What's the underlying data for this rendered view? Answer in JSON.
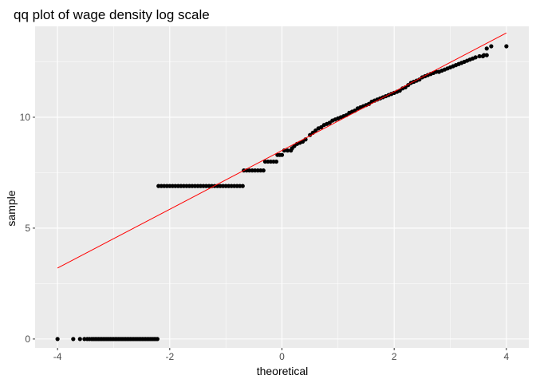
{
  "chart_data": {
    "type": "scatter",
    "title": "qq plot of wage density log scale",
    "xlabel": "theoretical",
    "ylabel": "sample",
    "xlim": [
      -4.4,
      4.4
    ],
    "ylim": [
      -0.4,
      14.1
    ],
    "x_ticks": [
      -4,
      -2,
      0,
      2,
      4
    ],
    "x_tick_labels": [
      "-4",
      "-2",
      "0",
      "2",
      "4"
    ],
    "y_ticks": [
      0,
      5,
      10
    ],
    "y_tick_labels": [
      "0",
      "5",
      "10"
    ],
    "grid": true,
    "background": "#ebebeb",
    "grid_color": "#ffffff",
    "point_color": "#000000",
    "line_color": "#ff0000",
    "reference_line": {
      "x": [
        -4,
        4
      ],
      "y": [
        3.2,
        13.8
      ]
    },
    "series": [
      {
        "points": [
          [
            -4.0,
            0
          ],
          [
            -3.72,
            0
          ],
          [
            -3.6,
            0
          ],
          [
            -3.52,
            0
          ],
          [
            -3.47,
            0
          ],
          [
            -3.43,
            0
          ],
          [
            -3.39,
            0
          ],
          [
            -3.36,
            0
          ],
          [
            -3.33,
            0
          ],
          [
            -3.3,
            0
          ],
          [
            -3.27,
            0
          ],
          [
            -3.24,
            0
          ],
          [
            -3.21,
            0
          ],
          [
            -3.18,
            0
          ],
          [
            -3.15,
            0
          ],
          [
            -3.12,
            0
          ],
          [
            -3.09,
            0
          ],
          [
            -3.06,
            0
          ],
          [
            -3.03,
            0
          ],
          [
            -3.0,
            0
          ],
          [
            -2.97,
            0
          ],
          [
            -2.94,
            0
          ],
          [
            -2.91,
            0
          ],
          [
            -2.88,
            0
          ],
          [
            -2.85,
            0
          ],
          [
            -2.82,
            0
          ],
          [
            -2.79,
            0
          ],
          [
            -2.76,
            0
          ],
          [
            -2.73,
            0
          ],
          [
            -2.7,
            0
          ],
          [
            -2.67,
            0
          ],
          [
            -2.64,
            0
          ],
          [
            -2.61,
            0
          ],
          [
            -2.58,
            0
          ],
          [
            -2.55,
            0
          ],
          [
            -2.52,
            0
          ],
          [
            -2.49,
            0
          ],
          [
            -2.46,
            0
          ],
          [
            -2.43,
            0
          ],
          [
            -2.4,
            0
          ],
          [
            -2.37,
            0
          ],
          [
            -2.34,
            0
          ],
          [
            -2.31,
            0
          ],
          [
            -2.28,
            0
          ],
          [
            -2.25,
            0
          ],
          [
            -2.22,
            0
          ],
          [
            -2.2,
            6.9
          ],
          [
            -2.15,
            6.9
          ],
          [
            -2.1,
            6.9
          ],
          [
            -2.05,
            6.9
          ],
          [
            -2.0,
            6.9
          ],
          [
            -1.95,
            6.9
          ],
          [
            -1.9,
            6.9
          ],
          [
            -1.85,
            6.9
          ],
          [
            -1.8,
            6.9
          ],
          [
            -1.75,
            6.9
          ],
          [
            -1.7,
            6.9
          ],
          [
            -1.65,
            6.9
          ],
          [
            -1.6,
            6.9
          ],
          [
            -1.55,
            6.9
          ],
          [
            -1.5,
            6.9
          ],
          [
            -1.45,
            6.9
          ],
          [
            -1.4,
            6.9
          ],
          [
            -1.35,
            6.9
          ],
          [
            -1.3,
            6.9
          ],
          [
            -1.25,
            6.9
          ],
          [
            -1.2,
            6.9
          ],
          [
            -1.15,
            6.9
          ],
          [
            -1.1,
            6.9
          ],
          [
            -1.05,
            6.9
          ],
          [
            -1.0,
            6.9
          ],
          [
            -0.95,
            6.9
          ],
          [
            -0.9,
            6.9
          ],
          [
            -0.85,
            6.9
          ],
          [
            -0.8,
            6.9
          ],
          [
            -0.75,
            6.9
          ],
          [
            -0.7,
            6.9
          ],
          [
            -0.68,
            7.6
          ],
          [
            -0.63,
            7.6
          ],
          [
            -0.58,
            7.6
          ],
          [
            -0.53,
            7.6
          ],
          [
            -0.48,
            7.6
          ],
          [
            -0.43,
            7.6
          ],
          [
            -0.38,
            7.6
          ],
          [
            -0.33,
            7.6
          ],
          [
            -0.3,
            8.0
          ],
          [
            -0.25,
            8.0
          ],
          [
            -0.2,
            8.0
          ],
          [
            -0.15,
            8.0
          ],
          [
            -0.1,
            8.0
          ],
          [
            -0.08,
            8.3
          ],
          [
            -0.04,
            8.3
          ],
          [
            0.0,
            8.3
          ],
          [
            0.04,
            8.5
          ],
          [
            0.1,
            8.5
          ],
          [
            0.16,
            8.5
          ],
          [
            0.18,
            8.6
          ],
          [
            0.22,
            8.7
          ],
          [
            0.27,
            8.8
          ],
          [
            0.32,
            8.85
          ],
          [
            0.37,
            8.9
          ],
          [
            0.42,
            9.0
          ],
          [
            0.5,
            9.2
          ],
          [
            0.55,
            9.3
          ],
          [
            0.6,
            9.4
          ],
          [
            0.65,
            9.5
          ],
          [
            0.7,
            9.55
          ],
          [
            0.75,
            9.65
          ],
          [
            0.8,
            9.7
          ],
          [
            0.85,
            9.75
          ],
          [
            0.9,
            9.85
          ],
          [
            0.95,
            9.9
          ],
          [
            1.0,
            9.95
          ],
          [
            1.05,
            10.0
          ],
          [
            1.1,
            10.05
          ],
          [
            1.15,
            10.1
          ],
          [
            1.2,
            10.2
          ],
          [
            1.25,
            10.25
          ],
          [
            1.3,
            10.3
          ],
          [
            1.35,
            10.4
          ],
          [
            1.4,
            10.45
          ],
          [
            1.45,
            10.5
          ],
          [
            1.5,
            10.55
          ],
          [
            1.55,
            10.6
          ],
          [
            1.6,
            10.7
          ],
          [
            1.65,
            10.75
          ],
          [
            1.7,
            10.8
          ],
          [
            1.75,
            10.85
          ],
          [
            1.8,
            10.9
          ],
          [
            1.85,
            10.95
          ],
          [
            1.9,
            11.0
          ],
          [
            1.95,
            11.05
          ],
          [
            2.0,
            11.1
          ],
          [
            2.05,
            11.15
          ],
          [
            2.1,
            11.2
          ],
          [
            2.15,
            11.3
          ],
          [
            2.2,
            11.35
          ],
          [
            2.25,
            11.45
          ],
          [
            2.3,
            11.55
          ],
          [
            2.35,
            11.6
          ],
          [
            2.4,
            11.65
          ],
          [
            2.45,
            11.7
          ],
          [
            2.5,
            11.8
          ],
          [
            2.55,
            11.85
          ],
          [
            2.6,
            11.9
          ],
          [
            2.65,
            11.95
          ],
          [
            2.7,
            12.0
          ],
          [
            2.75,
            12.05
          ],
          [
            2.8,
            12.05
          ],
          [
            2.85,
            12.1
          ],
          [
            2.9,
            12.15
          ],
          [
            2.95,
            12.2
          ],
          [
            3.0,
            12.25
          ],
          [
            3.05,
            12.3
          ],
          [
            3.1,
            12.35
          ],
          [
            3.15,
            12.4
          ],
          [
            3.2,
            12.45
          ],
          [
            3.25,
            12.5
          ],
          [
            3.3,
            12.55
          ],
          [
            3.35,
            12.6
          ],
          [
            3.4,
            12.65
          ],
          [
            3.45,
            12.7
          ],
          [
            3.52,
            12.75
          ],
          [
            3.58,
            12.75
          ],
          [
            3.65,
            12.8
          ],
          [
            3.6,
            12.8
          ],
          [
            3.65,
            13.1
          ],
          [
            3.73,
            13.2
          ],
          [
            4.0,
            13.2
          ]
        ]
      }
    ]
  }
}
